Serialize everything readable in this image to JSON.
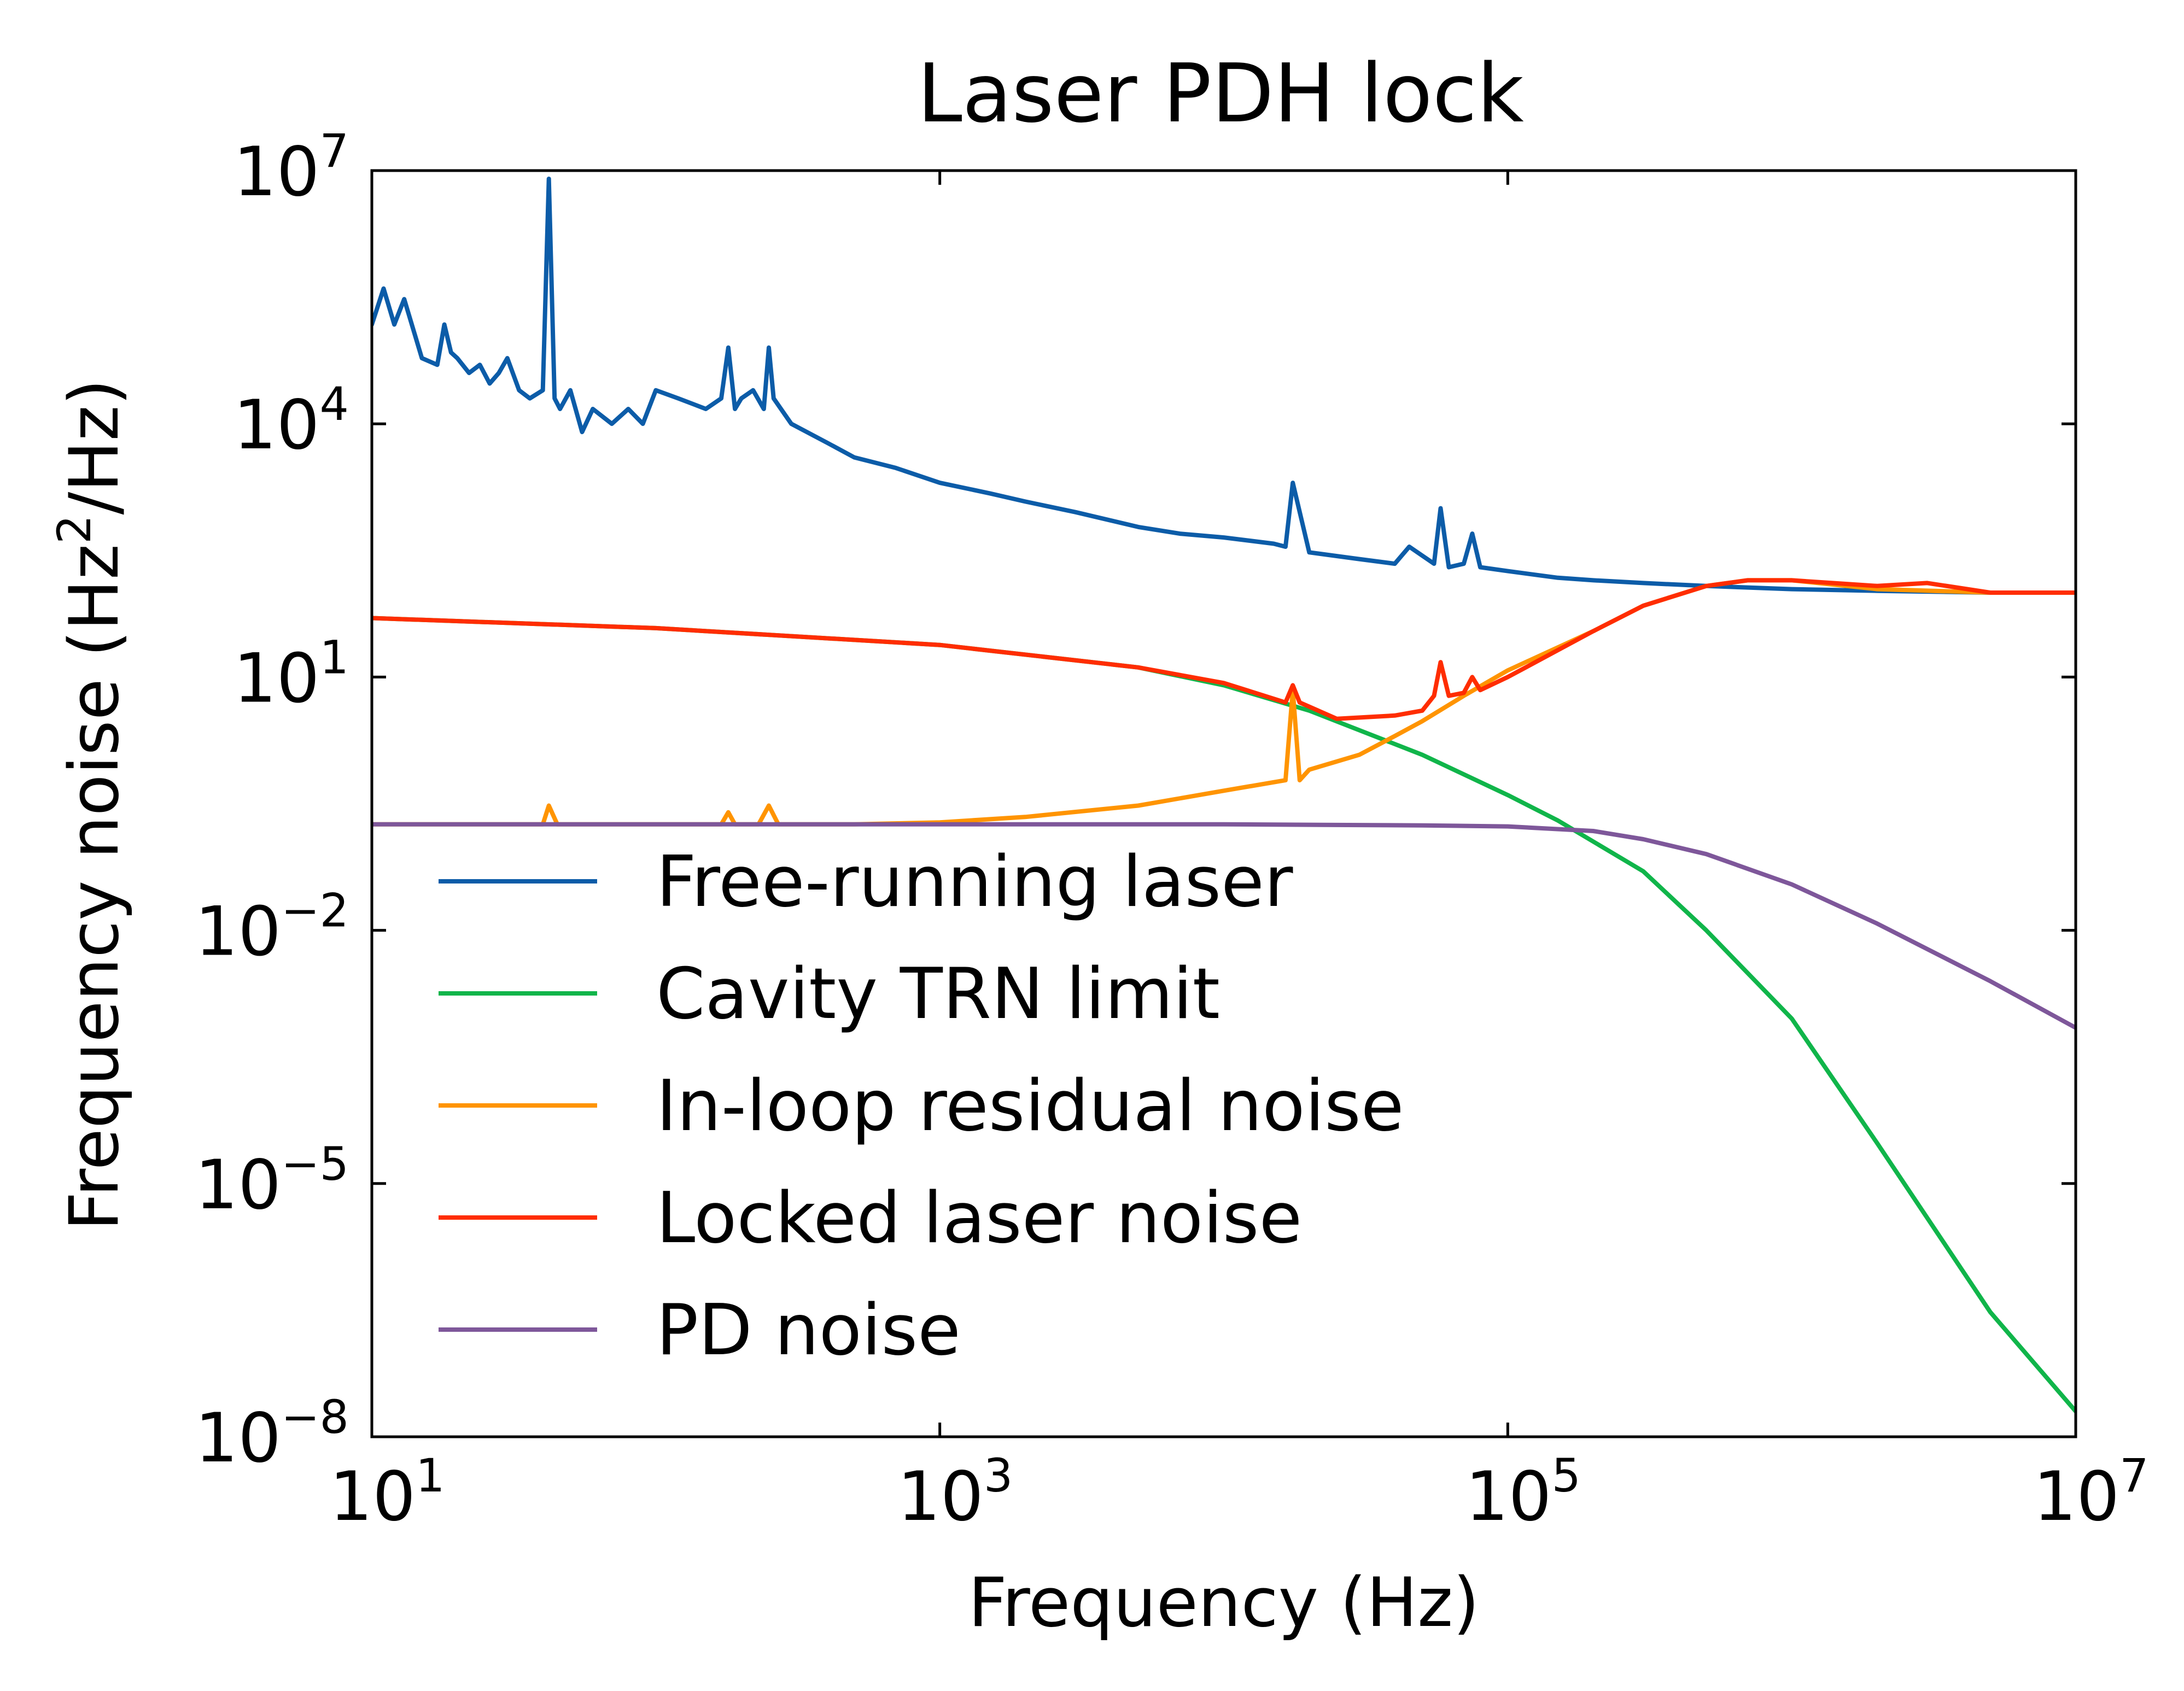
{
  "chart_data": {
    "type": "line",
    "title": "Laser PDH lock",
    "xlabel": "Frequency (Hz)",
    "ylabel_main": "Frequency noise (Hz",
    "ylabel_sup": "2",
    "ylabel_tail": "/Hz)",
    "x_scale": "log",
    "y_scale": "log",
    "xlim": [
      10,
      10000000
    ],
    "ylim": [
      1e-08,
      10000000
    ],
    "grid": false,
    "legend_position": "lower-left",
    "x_ticks": [
      {
        "base": "10",
        "exp": "1",
        "value": 10
      },
      {
        "base": "10",
        "exp": "3",
        "value": 1000
      },
      {
        "base": "10",
        "exp": "5",
        "value": 100000
      },
      {
        "base": "10",
        "exp": "7",
        "value": 10000000
      }
    ],
    "y_ticks": [
      {
        "base": "10",
        "exp": "7",
        "value": 10000000
      },
      {
        "base": "10",
        "exp": "4",
        "value": 10000
      },
      {
        "base": "10",
        "exp": "1",
        "value": 10
      },
      {
        "base": "10",
        "exp": "−2",
        "value": 0.01
      },
      {
        "base": "10",
        "exp": "−5",
        "value": 1e-05
      },
      {
        "base": "10",
        "exp": "−8",
        "value": 1e-08
      }
    ],
    "series": [
      {
        "name": "Free-running laser",
        "color": "#0c5ca8",
        "x": [
          10,
          11,
          12,
          13,
          15,
          17,
          18,
          19,
          20,
          22,
          24,
          26,
          28,
          30,
          33,
          36,
          40,
          42,
          44,
          46,
          50,
          55,
          60,
          70,
          80,
          90,
          100,
          120,
          150,
          170,
          180,
          190,
          200,
          220,
          240,
          250,
          260,
          300,
          400,
          500,
          700,
          1000,
          1500,
          2000,
          3000,
          5000,
          7000,
          10000,
          15000,
          16500,
          17500,
          20000,
          30000,
          40000,
          45000,
          55000,
          58000,
          62000,
          70000,
          75000,
          80000,
          100000,
          150000,
          200000,
          300000,
          500000,
          700000,
          1000000,
          2000000,
          5000000,
          10000000
        ],
        "y": [
          150000,
          400000,
          150000,
          300000,
          60000,
          50000,
          150000,
          70000,
          60000,
          40000,
          50000,
          30000,
          40000,
          60000,
          25000,
          20000,
          25000,
          8000000,
          20000,
          15000,
          25000,
          8000,
          15000,
          10000,
          15000,
          10000,
          25000,
          20000,
          15000,
          20000,
          80000,
          15000,
          20000,
          25000,
          15000,
          80000,
          20000,
          10000,
          6000,
          4000,
          3000,
          2000,
          1500,
          1200,
          900,
          600,
          500,
          450,
          380,
          350,
          2000,
          300,
          250,
          220,
          350,
          220,
          1000,
          200,
          220,
          500,
          200,
          180,
          150,
          140,
          130,
          120,
          115,
          110,
          105,
          100,
          100
        ]
      },
      {
        "name": "Cavity TRN limit",
        "color": "#10b54a",
        "x": [
          10,
          100,
          1000,
          5000,
          10000,
          20000,
          50000,
          100000,
          150000,
          300000,
          500000,
          1000000,
          2000000,
          5000000,
          10000000
        ],
        "y": [
          50,
          38,
          24,
          13,
          8,
          4,
          1.2,
          0.4,
          0.2,
          0.05,
          0.01,
          0.0009,
          3e-05,
          3e-07,
          2e-08
        ]
      },
      {
        "name": "In-loop residual noise",
        "color": "#ff9400",
        "x": [
          10,
          40,
          42,
          45,
          100,
          170,
          180,
          190,
          230,
          250,
          270,
          500,
          1000,
          2000,
          5000,
          10000,
          16500,
          17500,
          18500,
          20000,
          30000,
          40000,
          50000,
          70000,
          100000,
          200000,
          300000,
          500000,
          700000,
          1000000,
          2000000,
          5000000,
          10000000
        ],
        "y": [
          0.18,
          0.18,
          0.3,
          0.18,
          0.18,
          0.18,
          0.25,
          0.18,
          0.18,
          0.3,
          0.18,
          0.18,
          0.19,
          0.22,
          0.3,
          0.45,
          0.6,
          7,
          0.6,
          0.8,
          1.2,
          2,
          3,
          6,
          12,
          35,
          70,
          120,
          140,
          140,
          110,
          100,
          100
        ]
      },
      {
        "name": "Locked laser noise",
        "color": "#ff2d00",
        "x": [
          10,
          100,
          1000,
          5000,
          10000,
          16500,
          17500,
          18500,
          25000,
          40000,
          50000,
          55000,
          58000,
          62000,
          70000,
          75000,
          80000,
          100000,
          200000,
          300000,
          500000,
          700000,
          1000000,
          2000000,
          3000000,
          5000000,
          10000000
        ],
        "y": [
          50,
          38,
          24,
          13,
          8.5,
          5,
          8,
          5,
          3.2,
          3.5,
          4,
          6,
          15,
          6,
          6.5,
          10,
          7,
          10,
          35,
          70,
          120,
          140,
          140,
          120,
          130,
          100,
          100
        ]
      },
      {
        "name": "PD noise",
        "color": "#7e579a",
        "x": [
          10,
          100,
          1000,
          10000,
          50000,
          100000,
          200000,
          300000,
          500000,
          1000000,
          2000000,
          5000000,
          10000000
        ],
        "y": [
          0.18,
          0.18,
          0.18,
          0.18,
          0.175,
          0.17,
          0.15,
          0.12,
          0.08,
          0.035,
          0.012,
          0.0025,
          0.0007
        ]
      }
    ]
  }
}
